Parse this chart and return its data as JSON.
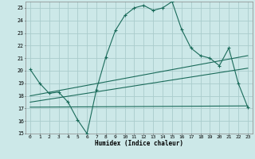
{
  "xlabel": "Humidex (Indice chaleur)",
  "bg_color": "#cce8e8",
  "grid_color": "#aacccc",
  "line_color": "#1a6b5a",
  "xlim": [
    -0.5,
    23.5
  ],
  "ylim": [
    15,
    25.5
  ],
  "xticks": [
    0,
    1,
    2,
    3,
    4,
    5,
    6,
    7,
    8,
    9,
    10,
    11,
    12,
    13,
    14,
    15,
    16,
    17,
    18,
    19,
    20,
    21,
    22,
    23
  ],
  "yticks": [
    15,
    16,
    17,
    18,
    19,
    20,
    21,
    22,
    23,
    24,
    25
  ],
  "main_x": [
    0,
    1,
    2,
    3,
    4,
    5,
    6,
    7,
    8,
    9,
    10,
    11,
    12,
    13,
    14,
    15,
    16,
    17,
    18,
    19,
    20,
    21,
    22,
    23
  ],
  "main_y": [
    20.1,
    19.0,
    18.2,
    18.3,
    17.5,
    16.1,
    15.0,
    18.5,
    21.1,
    23.2,
    24.4,
    25.0,
    25.2,
    24.8,
    25.0,
    25.5,
    23.3,
    21.8,
    21.2,
    21.0,
    20.4,
    21.8,
    19.0,
    17.1
  ],
  "trend1_x": [
    0,
    23
  ],
  "trend1_y": [
    18.0,
    21.2
  ],
  "trend2_x": [
    0,
    23
  ],
  "trend2_y": [
    17.5,
    20.2
  ],
  "trend3_x": [
    0,
    23
  ],
  "trend3_y": [
    17.1,
    17.2
  ]
}
